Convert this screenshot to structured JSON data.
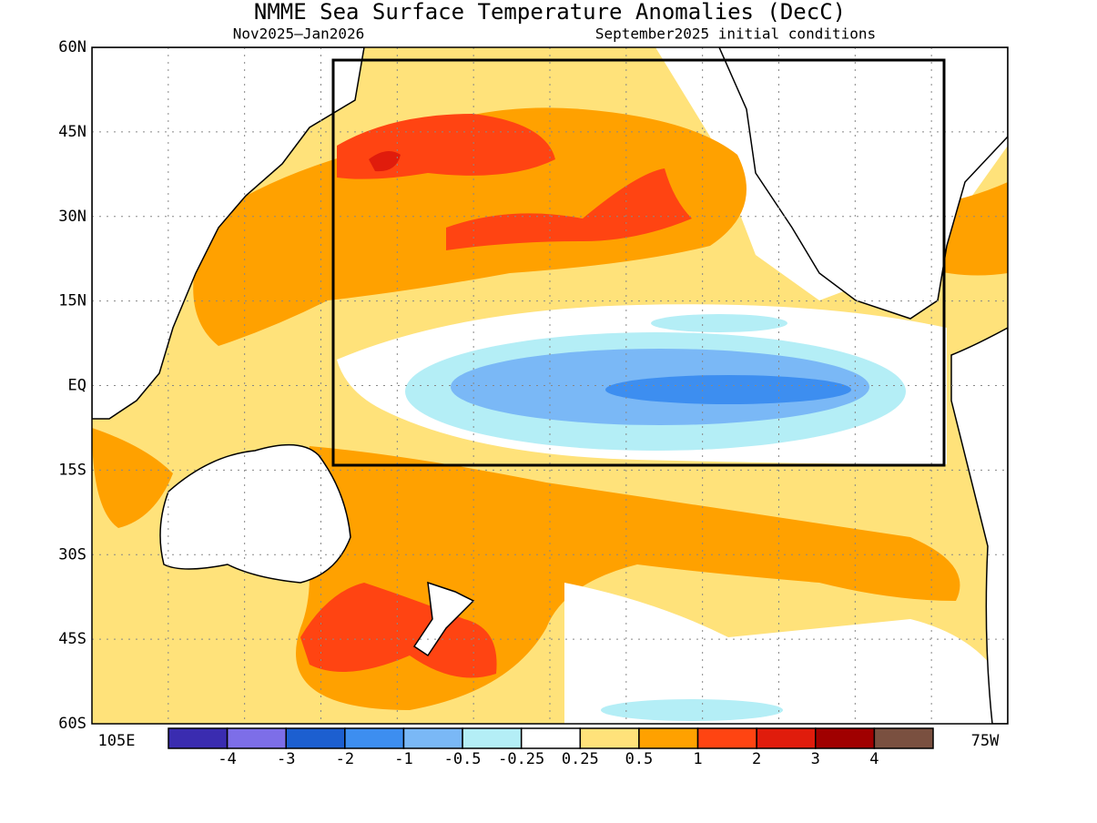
{
  "title": "NMME Sea Surface Temperature Anomalies (DecC)",
  "subtitle_left": "Nov2025–Jan2026",
  "subtitle_right": "September2025 initial conditions",
  "lat_labels": [
    "60N",
    "45N",
    "30N",
    "15N",
    "EQ",
    "15S",
    "30S",
    "45S",
    "60S"
  ],
  "lon_labels": [
    "105E",
    "75W"
  ],
  "colorbar": {
    "colors": [
      "#3a2cb0",
      "#7d6ee8",
      "#1c5fd0",
      "#3d8ef0",
      "#7ab8f6",
      "#b4eef6",
      "#ffffff",
      "#ffe27a",
      "#ffa100",
      "#ff4412",
      "#e01c0c",
      "#a00000",
      "#7a5040"
    ],
    "levels": [
      -4,
      -3,
      -2,
      -1,
      -0.5,
      -0.25,
      0.25,
      0.5,
      1,
      2,
      3,
      4
    ]
  }
}
